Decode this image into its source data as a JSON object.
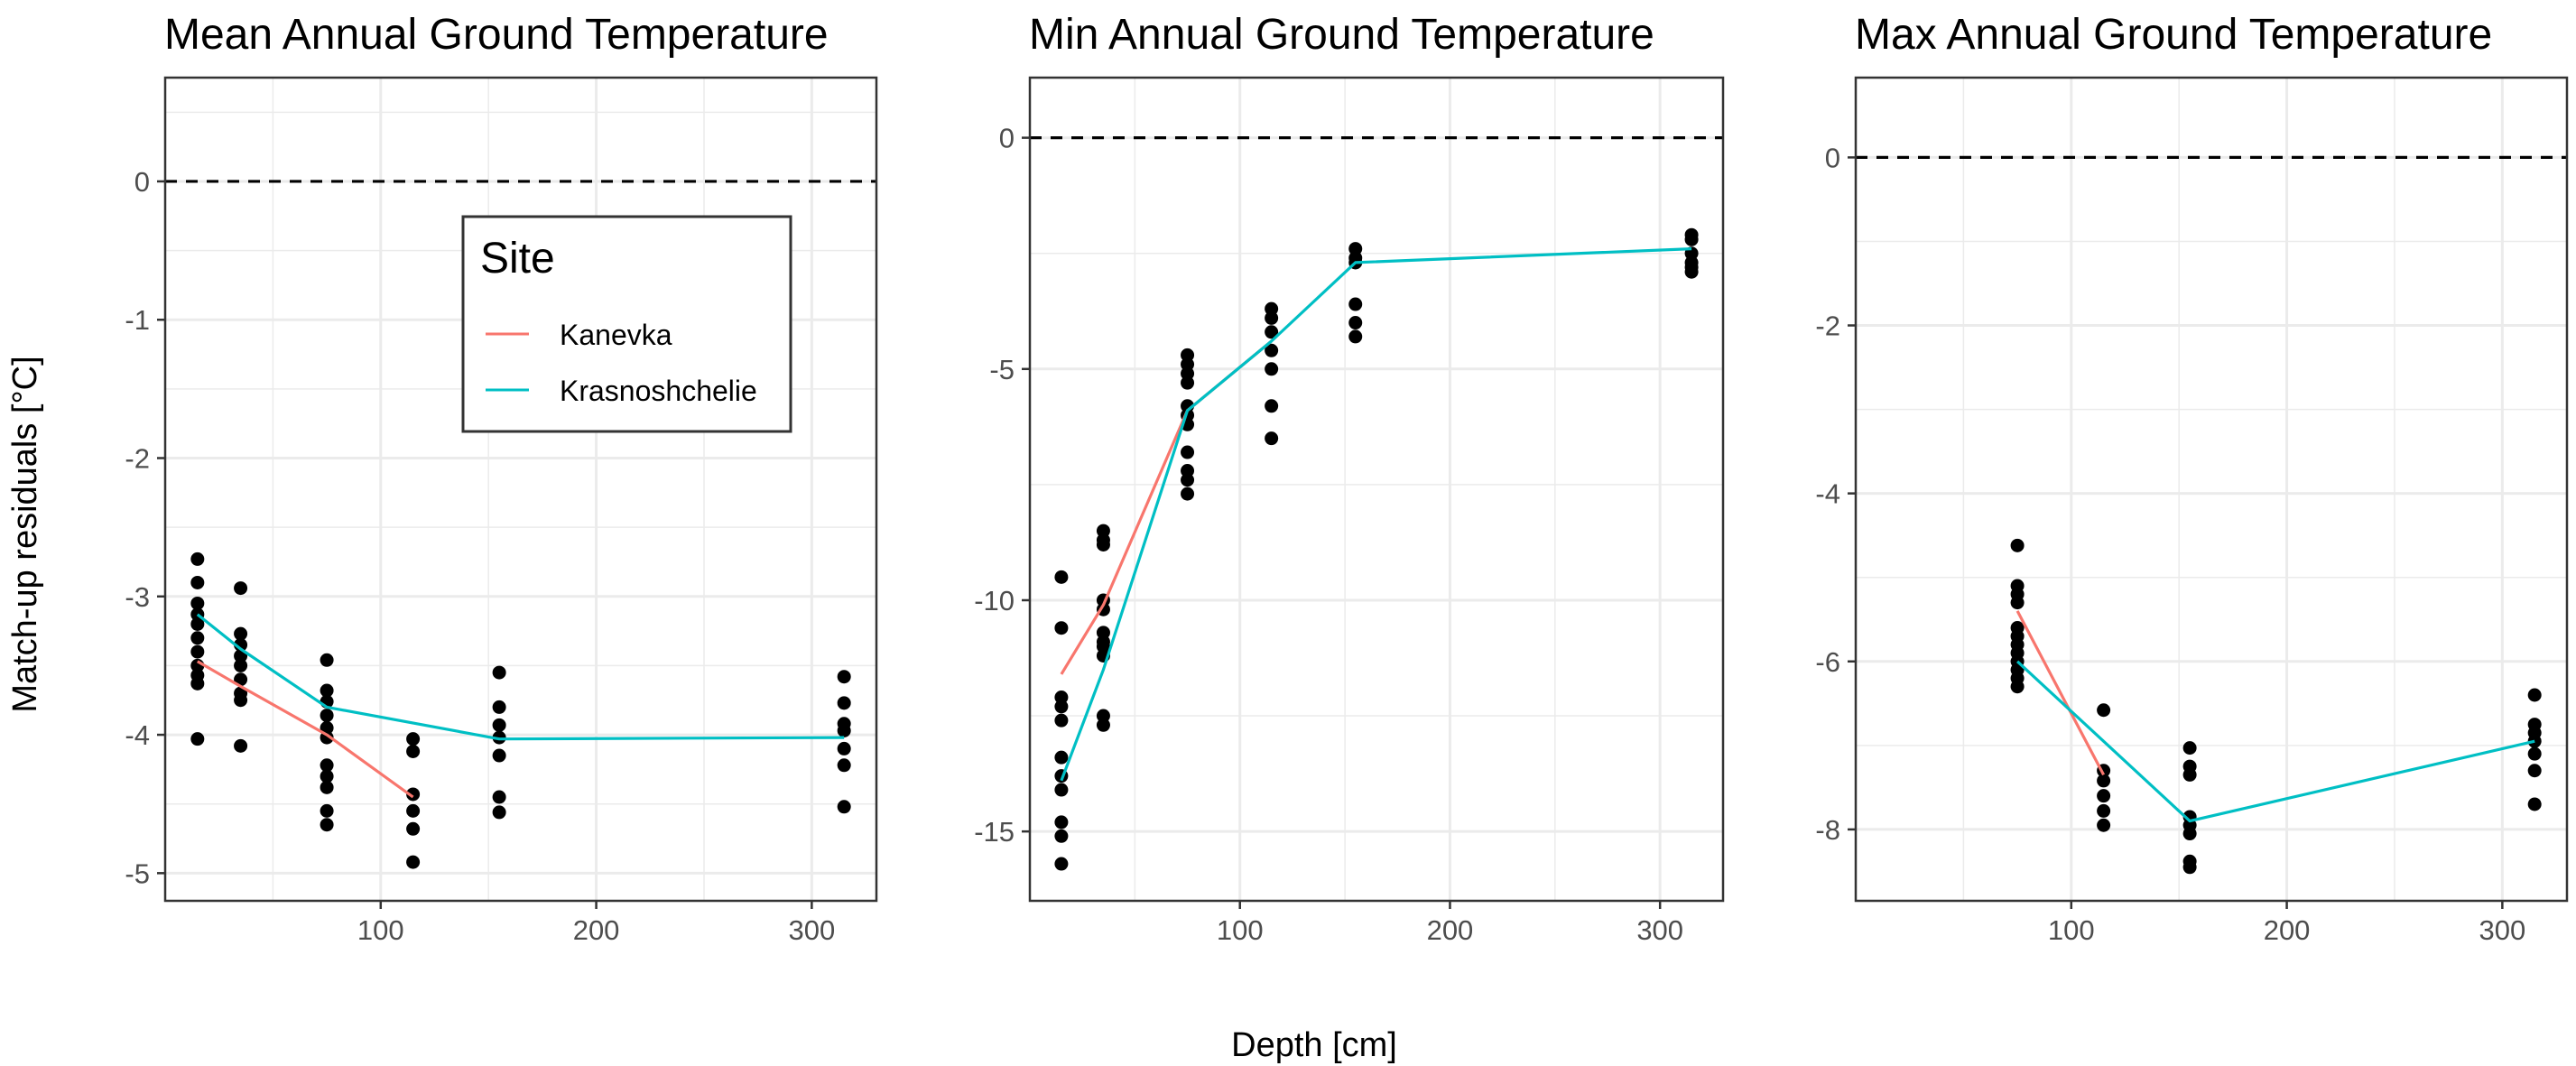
{
  "figure": {
    "ylabel": "Match-up residuals [°C]",
    "xlabel": "Depth [cm]"
  },
  "legend": {
    "title": "Site",
    "entries": [
      {
        "name": "Kanevka",
        "color": "#F8766D"
      },
      {
        "name": "Krasnoshchelie",
        "color": "#00BFC4"
      }
    ]
  },
  "colors": {
    "points": "#000000",
    "zero_line": "#000000",
    "grid": "#EBEBEB",
    "panel_border": "#333333"
  },
  "chart_data": [
    {
      "type": "scatter",
      "title": "Mean Annual Ground Temperature",
      "xlim": [
        0,
        330
      ],
      "ylim": [
        -5.2,
        0.75
      ],
      "x_ticks": [
        100,
        200,
        300
      ],
      "y_ticks": [
        0,
        -1,
        -2,
        -3,
        -4,
        -5
      ],
      "y_tick_labels": [
        "0",
        "-1",
        "-2",
        "-3",
        "-4",
        "-5"
      ],
      "hline": 0,
      "points": [
        {
          "x": 15,
          "y": [
            -2.73,
            -2.9,
            -3.05,
            -3.13,
            -3.2,
            -3.3,
            -3.4,
            -3.5,
            -3.57,
            -3.63,
            -4.03
          ]
        },
        {
          "x": 35,
          "y": [
            -2.94,
            -3.27,
            -3.35,
            -3.43,
            -3.5,
            -3.6,
            -3.7,
            -3.75,
            -4.08
          ]
        },
        {
          "x": 75,
          "y": [
            -3.46,
            -3.68,
            -3.76,
            -3.86,
            -3.95,
            -4.02,
            -4.22,
            -4.3,
            -4.38,
            -4.55,
            -4.65
          ]
        },
        {
          "x": 115,
          "y": [
            -4.03,
            -4.12,
            -4.43,
            -4.55,
            -4.68,
            -4.92
          ]
        },
        {
          "x": 155,
          "y": [
            -3.55,
            -3.8,
            -3.93,
            -4.02,
            -4.15,
            -4.45,
            -4.56
          ]
        },
        {
          "x": 315,
          "y": [
            -3.58,
            -3.77,
            -3.92,
            -3.97,
            -4.1,
            -4.22,
            -4.52
          ]
        }
      ],
      "series": [
        {
          "name": "Kanevka",
          "x": [
            15,
            35,
            75,
            115
          ],
          "y": [
            -3.47,
            -3.65,
            -4.0,
            -4.45
          ]
        },
        {
          "name": "Krasnoshchelie",
          "x": [
            15,
            35,
            75,
            155,
            315
          ],
          "y": [
            -3.13,
            -3.38,
            -3.8,
            -4.03,
            -4.02
          ]
        }
      ]
    },
    {
      "type": "scatter",
      "title": "Min Annual Ground Temperature",
      "xlim": [
        0,
        330
      ],
      "ylim": [
        -16.5,
        1.3
      ],
      "x_ticks": [
        100,
        200,
        300
      ],
      "y_ticks": [
        0,
        -5,
        -10,
        -15
      ],
      "y_tick_labels": [
        "0",
        "-5",
        "-10",
        "-15"
      ],
      "hline": 0,
      "points": [
        {
          "x": 15,
          "y": [
            -9.5,
            -10.6,
            -12.1,
            -12.3,
            -12.6,
            -13.4,
            -13.8,
            -14.1,
            -14.8,
            -15.1,
            -15.7
          ]
        },
        {
          "x": 35,
          "y": [
            -8.5,
            -8.7,
            -8.8,
            -10.0,
            -10.2,
            -10.7,
            -10.9,
            -11.0,
            -11.2,
            -12.5,
            -12.7
          ]
        },
        {
          "x": 75,
          "y": [
            -4.7,
            -4.9,
            -5.1,
            -5.3,
            -5.8,
            -6.0,
            -6.2,
            -6.8,
            -7.2,
            -7.4,
            -7.7
          ]
        },
        {
          "x": 115,
          "y": [
            -3.7,
            -3.9,
            -4.2,
            -4.6,
            -5.0,
            -5.8,
            -6.5
          ]
        },
        {
          "x": 155,
          "y": [
            -2.4,
            -2.6,
            -2.7,
            -3.6,
            -4.0,
            -4.3
          ]
        },
        {
          "x": 315,
          "y": [
            -2.1,
            -2.2,
            -2.5,
            -2.7,
            -2.8,
            -2.9
          ]
        }
      ],
      "series": [
        {
          "name": "Kanevka",
          "x": [
            15,
            35,
            75,
            115
          ],
          "y": [
            -11.6,
            -10.1,
            -5.9,
            -4.4
          ]
        },
        {
          "name": "Krasnoshchelie",
          "x": [
            15,
            35,
            75,
            115,
            155,
            315
          ],
          "y": [
            -13.9,
            -11.5,
            -5.9,
            -4.4,
            -2.7,
            -2.4
          ]
        }
      ]
    },
    {
      "type": "scatter",
      "title": "Max Annual Ground Temperature",
      "xlim": [
        0,
        330
      ],
      "ylim": [
        -8.85,
        0.95
      ],
      "x_ticks": [
        100,
        200,
        300
      ],
      "y_ticks": [
        0,
        -2,
        -4,
        -6,
        -8
      ],
      "y_tick_labels": [
        "0",
        "-2",
        "-4",
        "-6",
        "-8"
      ],
      "hline": 0,
      "points": [
        {
          "x": 75,
          "y": [
            -4.62,
            -5.1,
            -5.2,
            -5.3,
            -5.6,
            -5.7,
            -5.8,
            -5.9,
            -6.0,
            -6.1,
            -6.2,
            -6.3
          ]
        },
        {
          "x": 115,
          "y": [
            -6.58,
            -7.3,
            -7.42,
            -7.6,
            -7.78,
            -7.95
          ]
        },
        {
          "x": 155,
          "y": [
            -7.03,
            -7.25,
            -7.35,
            -7.85,
            -7.95,
            -8.05,
            -8.38,
            -8.45
          ]
        },
        {
          "x": 315,
          "y": [
            -6.4,
            -6.75,
            -6.85,
            -6.95,
            -7.1,
            -7.3,
            -7.7
          ]
        }
      ],
      "series": [
        {
          "name": "Kanevka",
          "x": [
            75,
            115
          ],
          "y": [
            -5.4,
            -7.35
          ]
        },
        {
          "name": "Krasnoshchelie",
          "x": [
            75,
            155,
            315
          ],
          "y": [
            -6.0,
            -7.9,
            -6.95
          ]
        }
      ]
    }
  ]
}
